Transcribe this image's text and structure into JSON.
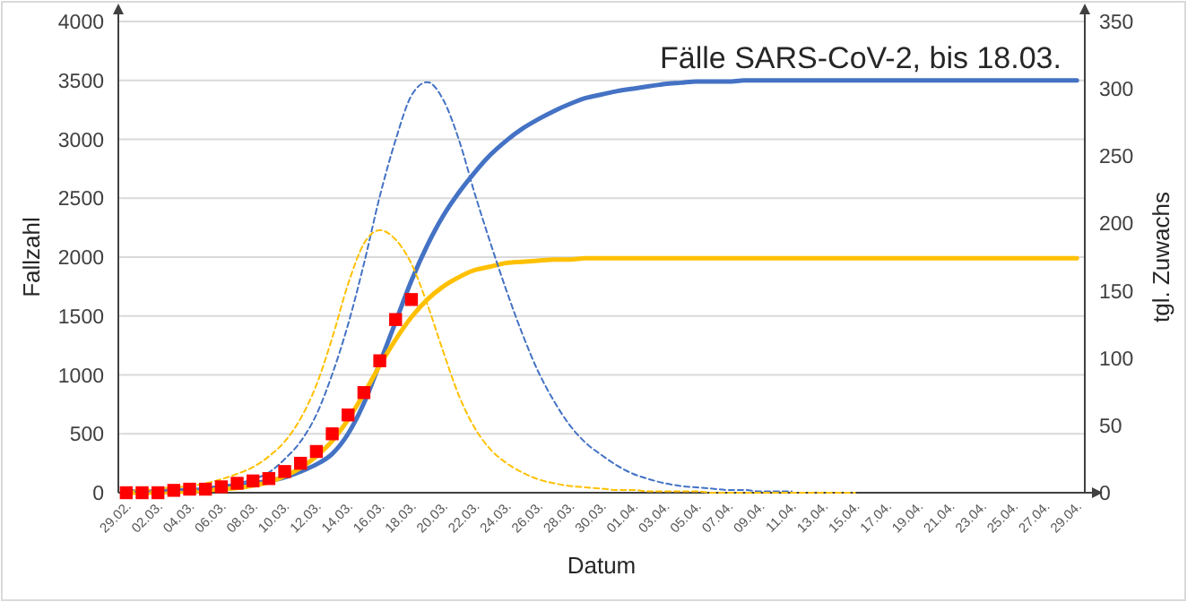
{
  "chart_data": {
    "type": "line",
    "title": "Fälle SARS-CoV-2, bis 18.03.",
    "xlabel": "Datum",
    "ylabel": "Fallzahl",
    "y2label": "tgl. Zuwachs",
    "categories": [
      "29.02.",
      null,
      "02.03.",
      null,
      "04.03.",
      null,
      "06.03.",
      null,
      "08.03.",
      null,
      "10.03.",
      null,
      "12.03.",
      null,
      "14.03.",
      null,
      "16.03.",
      null,
      "18.03.",
      null,
      "20.03.",
      null,
      "22.03.",
      null,
      "24.03.",
      null,
      "26.03.",
      null,
      "28.03.",
      null,
      "30.03.",
      null,
      "01.04.",
      null,
      "03.04.",
      null,
      "05.04.",
      null,
      "07.04.",
      null,
      "09.04.",
      null,
      "11.04.",
      null,
      "13.04.",
      null,
      "15.04.",
      null,
      "17.04.",
      null,
      "19.04.",
      null,
      "21.04.",
      null,
      "23.04.",
      null,
      "25.04.",
      null,
      "27.04.",
      null,
      "29.04."
    ],
    "ylim": [
      0,
      4000
    ],
    "yticks": [
      0,
      500,
      1000,
      1500,
      2000,
      2500,
      3000,
      3500,
      4000
    ],
    "y2lim": [
      0,
      350
    ],
    "y2ticks": [
      0,
      50,
      100,
      150,
      200,
      250,
      300,
      350
    ],
    "grid": "y",
    "series": [
      {
        "color": "#4472c4",
        "line_style": "solid",
        "values": [
          10,
          10,
          10,
          20,
          20,
          30,
          50,
          60,
          80,
          100,
          130,
          180,
          240,
          330,
          500,
          760,
          1100,
          1450,
          1800,
          2100,
          2350,
          2550,
          2720,
          2870,
          2990,
          3090,
          3170,
          3240,
          3300,
          3350,
          3380,
          3410,
          3430,
          3450,
          3470,
          3480,
          3490,
          3490,
          3490,
          3500,
          3500,
          3500,
          3500,
          3500,
          3500,
          3500,
          3500,
          3500,
          3500,
          3500,
          3500,
          3500,
          3500,
          3500,
          3500,
          3500,
          3500,
          3500,
          3500,
          3500,
          3500
        ]
      },
      {
        "color": "#ffc000",
        "line_style": "solid",
        "values": [
          0,
          0,
          0,
          10,
          10,
          20,
          30,
          40,
          60,
          90,
          140,
          210,
          310,
          440,
          620,
          840,
          1080,
          1300,
          1490,
          1640,
          1750,
          1830,
          1890,
          1920,
          1950,
          1960,
          1970,
          1980,
          1980,
          1990,
          1990,
          1990,
          1990,
          1990,
          1990,
          1990,
          1990,
          1990,
          1990,
          1990,
          1990,
          1990,
          1990,
          1990,
          1990,
          1990,
          1990,
          1990,
          1990,
          1990,
          1990,
          1990,
          1990,
          1990,
          1990,
          1990,
          1990,
          1990,
          1990,
          1990,
          1990
        ]
      },
      {
        "color": "#4472c4",
        "axis": "y2",
        "line_style": "dashed",
        "values": [
          1,
          1,
          1,
          2,
          2,
          3,
          5,
          7,
          10,
          15,
          25,
          38,
          58,
          88,
          125,
          170,
          220,
          262,
          295,
          305,
          292,
          262,
          222,
          185,
          150,
          118,
          90,
          68,
          50,
          37,
          28,
          20,
          14,
          10,
          7,
          5,
          4,
          3,
          2,
          2,
          1,
          1,
          1,
          null,
          null,
          null,
          null,
          null,
          null,
          null,
          null,
          null,
          null,
          null,
          null,
          null,
          null,
          null,
          null,
          null,
          null
        ]
      },
      {
        "color": "#ffc000",
        "axis": "y2",
        "line_style": "dashed",
        "values": [
          2,
          2,
          3,
          4,
          5,
          7,
          10,
          14,
          19,
          27,
          38,
          55,
          80,
          115,
          155,
          185,
          195,
          188,
          170,
          140,
          105,
          72,
          48,
          32,
          22,
          15,
          10,
          7,
          5,
          4,
          3,
          2,
          2,
          1,
          1,
          1,
          1,
          0,
          0,
          0,
          0,
          0,
          0,
          0,
          0,
          0,
          0,
          null,
          null,
          null,
          null,
          null,
          null,
          null,
          null,
          null,
          null,
          null,
          null,
          null,
          null
        ]
      },
      {
        "type": "scatter",
        "color": "#ff0000",
        "marker": "square",
        "values": [
          0,
          0,
          0,
          20,
          30,
          30,
          50,
          80,
          100,
          120,
          180,
          250,
          350,
          500,
          660,
          850,
          1120,
          1470,
          1640,
          null,
          null,
          null,
          null,
          null,
          null,
          null,
          null,
          null,
          null,
          null,
          null,
          null,
          null,
          null,
          null,
          null,
          null,
          null,
          null,
          null,
          null,
          null,
          null,
          null,
          null,
          null,
          null,
          null,
          null,
          null,
          null,
          null,
          null,
          null,
          null,
          null,
          null,
          null,
          null,
          null,
          null
        ]
      }
    ]
  }
}
